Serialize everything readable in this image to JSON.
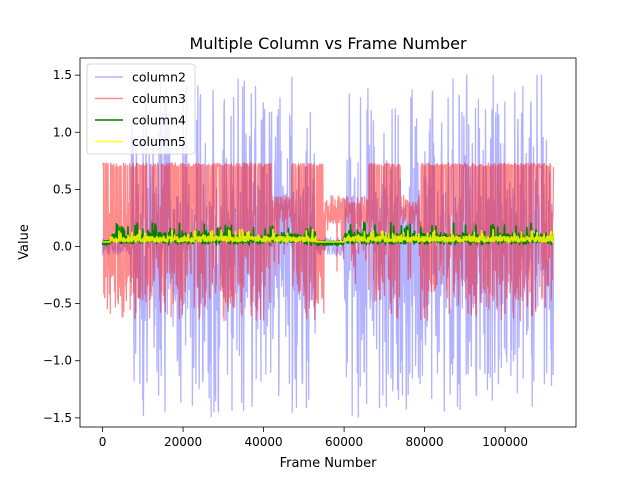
{
  "chart_data": {
    "type": "line",
    "title": "Multiple Column vs Frame Number",
    "xlabel": "Frame Number",
    "ylabel": "Value",
    "xlim": [
      -5600,
      117600
    ],
    "ylim": [
      -1.58,
      1.65
    ],
    "x_ticks": [
      0,
      20000,
      40000,
      60000,
      80000,
      100000
    ],
    "y_ticks": [
      -1.5,
      -1.0,
      -0.5,
      0.0,
      0.5,
      1.0,
      1.5
    ],
    "x_tick_labels": [
      "0",
      "20000",
      "40000",
      "60000",
      "80000",
      "100000"
    ],
    "y_tick_labels": [
      "−1.5",
      "−1.0",
      "−0.5",
      "0.0",
      "0.5",
      "1.0",
      "1.5"
    ],
    "x_range": [
      0,
      112000
    ],
    "legend_position": "top-left",
    "grid": false,
    "series": [
      {
        "name": "column2",
        "color": "#0000ff",
        "opacity": 0.3,
        "amplitude": 1.2,
        "low_amplitude": 0.55,
        "calm_segments": [
          [
            0,
            7000
          ],
          [
            53000,
            60000
          ]
        ],
        "values": [
          0.6,
          -0.9,
          1.3,
          -1.2,
          0.8,
          -1.3,
          1.1,
          -1.0,
          1.4,
          -1.2,
          0.9,
          -1.3,
          1.2,
          -0.8,
          1.4,
          -1.4,
          1.1,
          -1.1,
          1.3,
          -1.2,
          0.7,
          -1.0,
          1.0,
          -0.6,
          0.3,
          -0.2,
          0.6,
          -1.1,
          1.1,
          -1.3,
          1.2,
          -1.0,
          1.3,
          -1.2,
          1.0,
          -0.8,
          1.3,
          -1.4,
          1.5,
          -1.3,
          1.2,
          -1.1,
          0.9,
          -1.0,
          1.4,
          -1.4,
          1.5,
          -0.9,
          0.4
        ]
      },
      {
        "name": "column3",
        "color": "#ff0000",
        "opacity": 0.45,
        "upper": 0.73,
        "lower": -0.65,
        "quiet_segments": [
          [
            42000,
            47000
          ],
          [
            55000,
            66000
          ],
          [
            74000,
            79000
          ]
        ]
      },
      {
        "name": "column4",
        "color": "#008000",
        "opacity": 1.0,
        "base": 0.05,
        "peak": 0.22
      },
      {
        "name": "column5",
        "color": "#ffff00",
        "opacity": 0.85,
        "base": 0.04,
        "peak": 0.15
      }
    ]
  }
}
